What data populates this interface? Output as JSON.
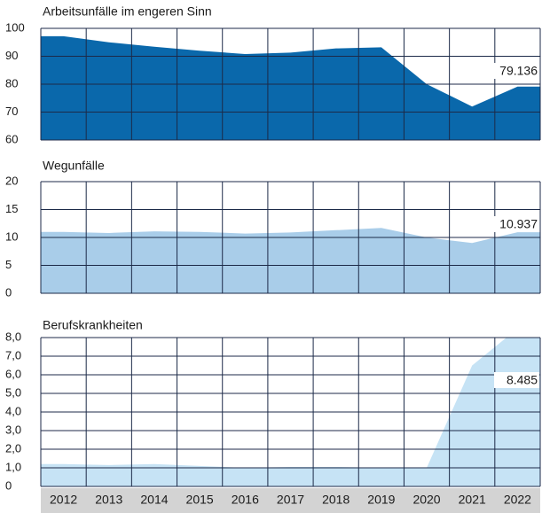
{
  "chart_data": [
    {
      "type": "area",
      "title": "Arbeitsunfälle im engeren Sinn",
      "color": "#0a68ab",
      "values": [
        97.2,
        95,
        93.4,
        92,
        90.8,
        91.3,
        92.8,
        93.2,
        80,
        72,
        79.136
      ],
      "value_labels": [
        null,
        null,
        null,
        null,
        null,
        null,
        null,
        null,
        null,
        null,
        "79.136"
      ],
      "ylim": [
        60,
        100
      ],
      "yticks": [
        60,
        70,
        80,
        90,
        100
      ],
      "grid": true
    },
    {
      "type": "area",
      "title": "Wegunfälle",
      "color": "#a9cde9",
      "values": [
        11,
        10.8,
        11.1,
        11,
        10.7,
        10.9,
        11.3,
        11.7,
        10,
        9,
        10.937
      ],
      "value_labels": [
        null,
        null,
        null,
        null,
        null,
        null,
        null,
        null,
        null,
        null,
        "10.937"
      ],
      "ylim": [
        0,
        20
      ],
      "yticks": [
        0,
        5,
        10,
        15,
        20
      ],
      "grid": true
    },
    {
      "type": "area",
      "title": "Berufskrankheiten",
      "color": "#c6e3f5",
      "categories": [
        "2012",
        "2013",
        "2014",
        "2015",
        "2016",
        "2017",
        "2018",
        "2019",
        "2020",
        "2021",
        "2022"
      ],
      "values": [
        1.2,
        1.15,
        1.2,
        1.1,
        1.0,
        1.05,
        1.05,
        1.0,
        1.0,
        6.5,
        8.485
      ],
      "value_labels": [
        null,
        null,
        null,
        null,
        null,
        null,
        null,
        null,
        null,
        null,
        "8.485"
      ],
      "ylim": [
        0,
        8
      ],
      "yticks": [
        0,
        {
          "value": 1,
          "label": "1,0"
        },
        {
          "value": 2,
          "label": "2,0"
        },
        {
          "value": 3,
          "label": "3,0"
        },
        {
          "value": 4,
          "label": "4,0"
        },
        {
          "value": 5,
          "label": "5,0"
        },
        {
          "value": 6,
          "label": "6,0"
        },
        {
          "value": 7,
          "label": "7,0"
        },
        {
          "value": 8,
          "label": "8,0"
        }
      ],
      "grid": true
    }
  ]
}
